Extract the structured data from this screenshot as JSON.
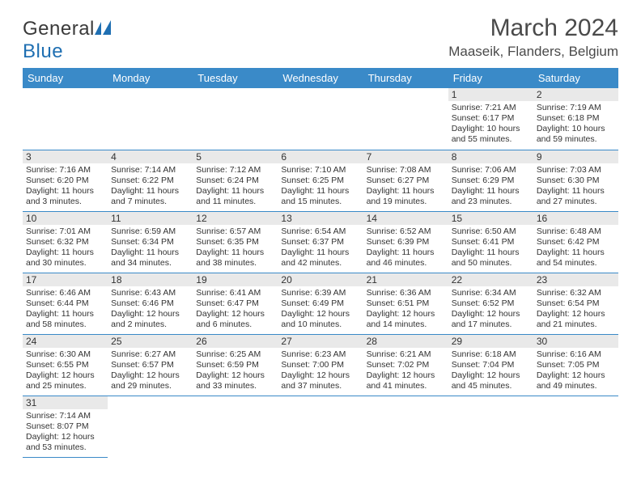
{
  "brand": {
    "word1": "General",
    "word2": "Blue"
  },
  "title": {
    "month": "March 2024",
    "location": "Maaseik, Flanders, Belgium"
  },
  "colors": {
    "header_bg": "#3a8ac8",
    "header_fg": "#ffffff",
    "rule": "#3a8ac8",
    "daynum_bg": "#e9e9e9",
    "text": "#333333"
  },
  "daysOfWeek": [
    "Sunday",
    "Monday",
    "Tuesday",
    "Wednesday",
    "Thursday",
    "Friday",
    "Saturday"
  ],
  "weeks": [
    [
      null,
      null,
      null,
      null,
      null,
      {
        "n": "1",
        "sunrise": "7:21 AM",
        "sunset": "6:17 PM",
        "daylight": "10 hours and 55 minutes."
      },
      {
        "n": "2",
        "sunrise": "7:19 AM",
        "sunset": "6:18 PM",
        "daylight": "10 hours and 59 minutes."
      }
    ],
    [
      {
        "n": "3",
        "sunrise": "7:16 AM",
        "sunset": "6:20 PM",
        "daylight": "11 hours and 3 minutes."
      },
      {
        "n": "4",
        "sunrise": "7:14 AM",
        "sunset": "6:22 PM",
        "daylight": "11 hours and 7 minutes."
      },
      {
        "n": "5",
        "sunrise": "7:12 AM",
        "sunset": "6:24 PM",
        "daylight": "11 hours and 11 minutes."
      },
      {
        "n": "6",
        "sunrise": "7:10 AM",
        "sunset": "6:25 PM",
        "daylight": "11 hours and 15 minutes."
      },
      {
        "n": "7",
        "sunrise": "7:08 AM",
        "sunset": "6:27 PM",
        "daylight": "11 hours and 19 minutes."
      },
      {
        "n": "8",
        "sunrise": "7:06 AM",
        "sunset": "6:29 PM",
        "daylight": "11 hours and 23 minutes."
      },
      {
        "n": "9",
        "sunrise": "7:03 AM",
        "sunset": "6:30 PM",
        "daylight": "11 hours and 27 minutes."
      }
    ],
    [
      {
        "n": "10",
        "sunrise": "7:01 AM",
        "sunset": "6:32 PM",
        "daylight": "11 hours and 30 minutes."
      },
      {
        "n": "11",
        "sunrise": "6:59 AM",
        "sunset": "6:34 PM",
        "daylight": "11 hours and 34 minutes."
      },
      {
        "n": "12",
        "sunrise": "6:57 AM",
        "sunset": "6:35 PM",
        "daylight": "11 hours and 38 minutes."
      },
      {
        "n": "13",
        "sunrise": "6:54 AM",
        "sunset": "6:37 PM",
        "daylight": "11 hours and 42 minutes."
      },
      {
        "n": "14",
        "sunrise": "6:52 AM",
        "sunset": "6:39 PM",
        "daylight": "11 hours and 46 minutes."
      },
      {
        "n": "15",
        "sunrise": "6:50 AM",
        "sunset": "6:41 PM",
        "daylight": "11 hours and 50 minutes."
      },
      {
        "n": "16",
        "sunrise": "6:48 AM",
        "sunset": "6:42 PM",
        "daylight": "11 hours and 54 minutes."
      }
    ],
    [
      {
        "n": "17",
        "sunrise": "6:46 AM",
        "sunset": "6:44 PM",
        "daylight": "11 hours and 58 minutes."
      },
      {
        "n": "18",
        "sunrise": "6:43 AM",
        "sunset": "6:46 PM",
        "daylight": "12 hours and 2 minutes."
      },
      {
        "n": "19",
        "sunrise": "6:41 AM",
        "sunset": "6:47 PM",
        "daylight": "12 hours and 6 minutes."
      },
      {
        "n": "20",
        "sunrise": "6:39 AM",
        "sunset": "6:49 PM",
        "daylight": "12 hours and 10 minutes."
      },
      {
        "n": "21",
        "sunrise": "6:36 AM",
        "sunset": "6:51 PM",
        "daylight": "12 hours and 14 minutes."
      },
      {
        "n": "22",
        "sunrise": "6:34 AM",
        "sunset": "6:52 PM",
        "daylight": "12 hours and 17 minutes."
      },
      {
        "n": "23",
        "sunrise": "6:32 AM",
        "sunset": "6:54 PM",
        "daylight": "12 hours and 21 minutes."
      }
    ],
    [
      {
        "n": "24",
        "sunrise": "6:30 AM",
        "sunset": "6:55 PM",
        "daylight": "12 hours and 25 minutes."
      },
      {
        "n": "25",
        "sunrise": "6:27 AM",
        "sunset": "6:57 PM",
        "daylight": "12 hours and 29 minutes."
      },
      {
        "n": "26",
        "sunrise": "6:25 AM",
        "sunset": "6:59 PM",
        "daylight": "12 hours and 33 minutes."
      },
      {
        "n": "27",
        "sunrise": "6:23 AM",
        "sunset": "7:00 PM",
        "daylight": "12 hours and 37 minutes."
      },
      {
        "n": "28",
        "sunrise": "6:21 AM",
        "sunset": "7:02 PM",
        "daylight": "12 hours and 41 minutes."
      },
      {
        "n": "29",
        "sunrise": "6:18 AM",
        "sunset": "7:04 PM",
        "daylight": "12 hours and 45 minutes."
      },
      {
        "n": "30",
        "sunrise": "6:16 AM",
        "sunset": "7:05 PM",
        "daylight": "12 hours and 49 minutes."
      }
    ],
    [
      {
        "n": "31",
        "sunrise": "7:14 AM",
        "sunset": "8:07 PM",
        "daylight": "12 hours and 53 minutes."
      },
      null,
      null,
      null,
      null,
      null,
      null
    ]
  ],
  "labels": {
    "sunrise": "Sunrise: ",
    "sunset": "Sunset: ",
    "daylight": "Daylight: "
  }
}
